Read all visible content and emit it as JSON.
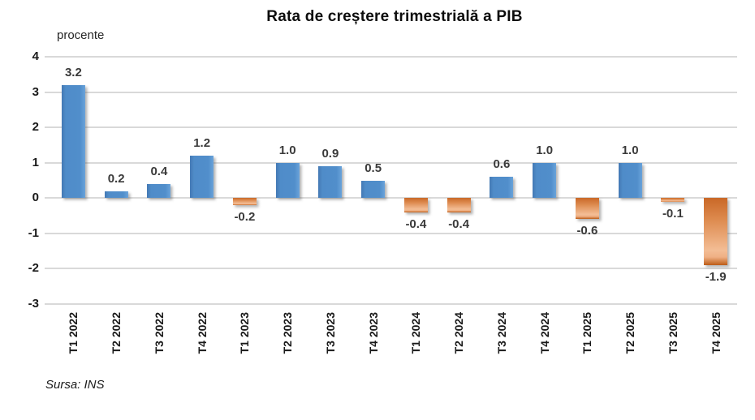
{
  "chart_data": {
    "type": "bar",
    "title": "Rata de creștere trimestrială a PIB",
    "ylabel": "procente",
    "source": "Sursa: INS",
    "categories": [
      "T1 2022",
      "T2 2022",
      "T3 2022",
      "T4 2022",
      "T1 2023",
      "T2 2023",
      "T3 2023",
      "T4 2023",
      "T1 2024",
      "T2 2024",
      "T3 2024",
      "T4 2024",
      "T1 2025",
      "T2 2025",
      "T3 2025",
      "T4 2025"
    ],
    "values": [
      3.2,
      0.2,
      0.4,
      1.2,
      -0.2,
      1.0,
      0.9,
      0.5,
      -0.4,
      -0.4,
      0.6,
      1.0,
      -0.6,
      1.0,
      -0.1,
      -1.9
    ],
    "value_labels": [
      "3.2",
      "0.2",
      "0.4",
      "1.2",
      "-0.2",
      "1.0",
      "0.9",
      "0.5",
      "-0.4",
      "-0.4",
      "0.6",
      "1.0",
      "-0.6",
      "1.0",
      "-0.1",
      "-1.9"
    ],
    "ylim": [
      -3,
      4
    ],
    "yticks": [
      4,
      3,
      2,
      1,
      0,
      -1,
      -2,
      -3
    ],
    "grid": true,
    "legend": "none",
    "colors": {
      "positive": "#4f8cc9",
      "negative": "#e08b4f",
      "gridline": "#d9d9d9",
      "text": "#1a1a1a",
      "value_label": "#3a3a3a"
    }
  }
}
